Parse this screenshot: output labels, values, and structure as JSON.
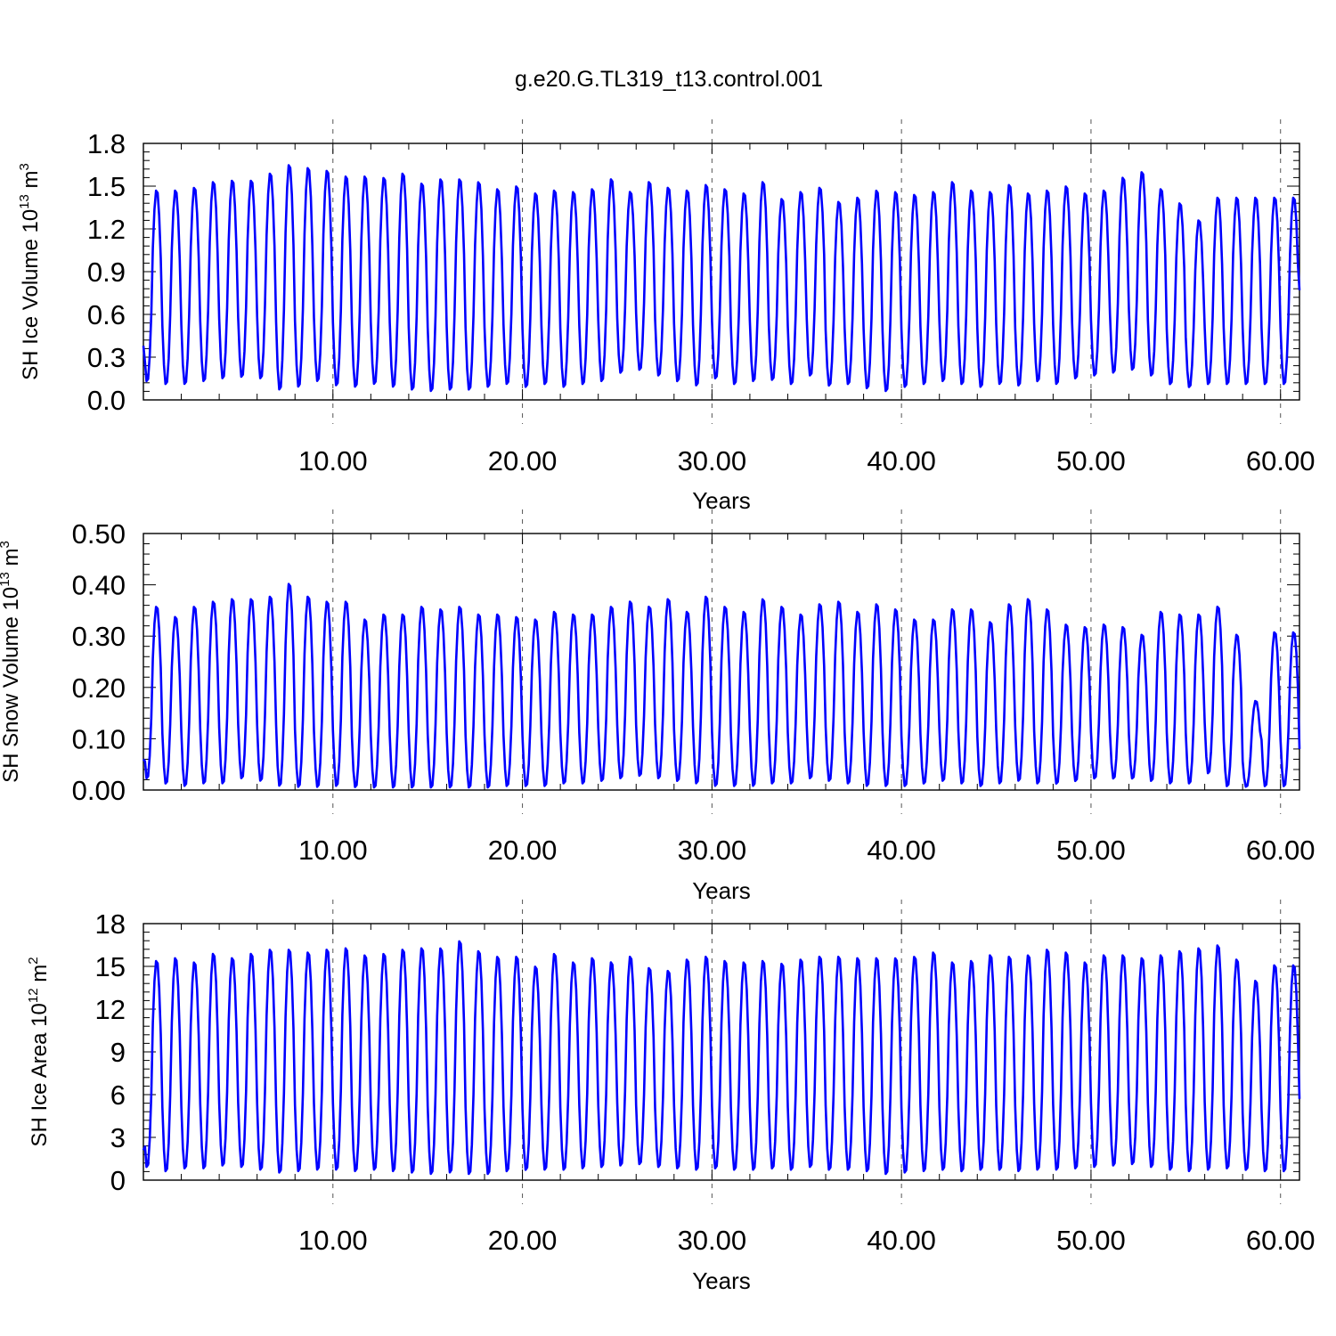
{
  "chart_data": {
    "title": "g.e20.G.TL319_t13.control.001",
    "panels": [
      {
        "type": "line",
        "ylabel_parts": [
          "SH Ice Volume 10",
          "13",
          " m",
          "3"
        ],
        "xlabel": "Years",
        "xlim": [
          0.0,
          61.0
        ],
        "ylim": [
          0.0,
          1.8
        ],
        "y_ticks": [
          0.0,
          0.3,
          0.6,
          0.9,
          1.2,
          1.5,
          1.8
        ],
        "y_tick_labels": [
          "0.0",
          "0.3",
          "0.6",
          "0.9",
          "1.2",
          "1.5",
          "1.8"
        ],
        "x_ticks": [
          10,
          20,
          30,
          40,
          50,
          60
        ],
        "x_tick_labels": [
          "10.00",
          "20.00",
          "30.00",
          "40.00",
          "50.00",
          "60.00"
        ],
        "series": [
          {
            "name": "SH Ice Volume",
            "color": "#0000ff",
            "annual_max": [
              1.48,
              1.48,
              1.5,
              1.54,
              1.55,
              1.55,
              1.6,
              1.66,
              1.64,
              1.62,
              1.58,
              1.58,
              1.57,
              1.6,
              1.53,
              1.56,
              1.56,
              1.54,
              1.49,
              1.51,
              1.46,
              1.48,
              1.47,
              1.49,
              1.56,
              1.47,
              1.54,
              1.5,
              1.48,
              1.52,
              1.49,
              1.46,
              1.54,
              1.42,
              1.47,
              1.5,
              1.4,
              1.43,
              1.48,
              1.47,
              1.45,
              1.47,
              1.54,
              1.48,
              1.47,
              1.52,
              1.46,
              1.48,
              1.51,
              1.46,
              1.48,
              1.57,
              1.61,
              1.49,
              1.39,
              1.27,
              1.43
            ],
            "annual_min": [
              0.12,
              0.1,
              0.1,
              0.12,
              0.14,
              0.15,
              0.14,
              0.06,
              0.08,
              0.12,
              0.09,
              0.08,
              0.1,
              0.08,
              0.06,
              0.05,
              0.06,
              0.06,
              0.08,
              0.1,
              0.08,
              0.1,
              0.08,
              0.1,
              0.12,
              0.18,
              0.2,
              0.16,
              0.12,
              0.09,
              0.14,
              0.1,
              0.12,
              0.13,
              0.1,
              0.16,
              0.09,
              0.1,
              0.07,
              0.05,
              0.08,
              0.1,
              0.12,
              0.1,
              0.08,
              0.1,
              0.09,
              0.12,
              0.1,
              0.14,
              0.16,
              0.18,
              0.2,
              0.16,
              0.1,
              0.08,
              0.1
            ],
            "start_value": 0.38,
            "end_value": 0.77
          }
        ]
      },
      {
        "type": "line",
        "ylabel_parts": [
          "SH Snow Volume 10",
          "13",
          " m",
          "3"
        ],
        "xlabel": "Years",
        "xlim": [
          0.0,
          61.0
        ],
        "ylim": [
          0.0,
          0.5
        ],
        "y_ticks": [
          0.0,
          0.1,
          0.2,
          0.3,
          0.4,
          0.5
        ],
        "y_tick_labels": [
          "0.00",
          "0.10",
          "0.20",
          "0.30",
          "0.40",
          "0.50"
        ],
        "x_ticks": [
          10,
          20,
          30,
          40,
          50,
          60
        ],
        "x_tick_labels": [
          "10.00",
          "20.00",
          "30.00",
          "40.00",
          "50.00",
          "60.00"
        ],
        "series": [
          {
            "name": "SH Snow Volume",
            "color": "#0000ff",
            "annual_max": [
              0.36,
              0.34,
              0.36,
              0.37,
              0.375,
              0.375,
              0.38,
              0.405,
              0.38,
              0.37,
              0.37,
              0.335,
              0.345,
              0.345,
              0.36,
              0.355,
              0.36,
              0.345,
              0.345,
              0.34,
              0.335,
              0.35,
              0.345,
              0.345,
              0.36,
              0.37,
              0.36,
              0.375,
              0.35,
              0.38,
              0.36,
              0.35,
              0.375,
              0.36,
              0.345,
              0.365,
              0.37,
              0.35,
              0.365,
              0.355,
              0.335,
              0.335,
              0.355,
              0.355,
              0.33,
              0.365,
              0.375,
              0.355,
              0.325,
              0.32,
              0.325,
              0.32,
              0.305,
              0.35,
              0.345,
              0.345,
              0.36,
              0.305,
              0.175,
              0.31
            ],
            "annual_min": [
              0.02,
              0.01,
              0.005,
              0.01,
              0.01,
              0.02,
              0.015,
              0.005,
              0.003,
              0.003,
              0.005,
              0.003,
              0.002,
              0.002,
              0.002,
              0.002,
              0.002,
              0.002,
              0.002,
              0.005,
              0.005,
              0.005,
              0.01,
              0.01,
              0.015,
              0.02,
              0.025,
              0.02,
              0.015,
              0.01,
              0.005,
              0.005,
              0.005,
              0.01,
              0.01,
              0.02,
              0.015,
              0.01,
              0.005,
              0.005,
              0.005,
              0.01,
              0.015,
              0.01,
              0.005,
              0.01,
              0.015,
              0.01,
              0.01,
              0.015,
              0.02,
              0.02,
              0.02,
              0.015,
              0.01,
              0.01,
              0.03,
              0.005,
              0.005,
              0.005
            ],
            "start_value": 0.06,
            "end_value": 0.08
          }
        ]
      },
      {
        "type": "line",
        "ylabel_parts": [
          "SH Ice Area 10",
          "12",
          " m",
          "2"
        ],
        "xlabel": "Years",
        "xlim": [
          0.0,
          61.0
        ],
        "ylim": [
          0,
          18
        ],
        "y_ticks": [
          0,
          3,
          6,
          9,
          12,
          15,
          18
        ],
        "y_tick_labels": [
          "0",
          "3",
          "6",
          "9",
          "12",
          "15",
          "18"
        ],
        "x_ticks": [
          10,
          20,
          30,
          40,
          50,
          60
        ],
        "x_tick_labels": [
          "10.00",
          "20.00",
          "30.00",
          "40.00",
          "50.00",
          "60.00"
        ],
        "series": [
          {
            "name": "SH Ice Area",
            "color": "#0000ff",
            "annual_max": [
              15.5,
              15.7,
              15.4,
              16.0,
              15.7,
              16.0,
              16.3,
              16.3,
              16.1,
              16.3,
              16.4,
              15.9,
              16.0,
              16.3,
              16.4,
              16.4,
              16.9,
              16.2,
              15.8,
              15.8,
              15.1,
              16.0,
              15.4,
              15.7,
              15.4,
              15.8,
              15.0,
              14.8,
              15.6,
              15.8,
              15.5,
              15.4,
              15.5,
              15.3,
              15.6,
              15.8,
              15.8,
              15.7,
              15.7,
              15.7,
              15.8,
              16.1,
              15.4,
              15.5,
              15.9,
              15.8,
              15.9,
              16.3,
              16.1,
              15.4,
              15.9,
              15.9,
              15.7,
              15.9,
              16.2,
              16.4,
              16.6,
              15.6,
              14.1,
              15.2
            ],
            "annual_min": [
              0.8,
              0.5,
              0.7,
              0.7,
              0.9,
              0.8,
              0.6,
              0.4,
              0.5,
              0.6,
              0.6,
              0.5,
              0.6,
              0.5,
              0.4,
              0.3,
              0.4,
              0.3,
              0.3,
              0.5,
              0.6,
              0.6,
              0.6,
              0.7,
              0.8,
              0.9,
              1.0,
              0.8,
              0.7,
              0.6,
              0.7,
              0.6,
              0.6,
              0.7,
              0.6,
              0.8,
              0.6,
              0.6,
              0.5,
              0.3,
              0.4,
              0.5,
              0.6,
              0.5,
              0.6,
              0.6,
              0.5,
              0.6,
              0.6,
              0.7,
              0.8,
              0.9,
              1.0,
              0.8,
              0.6,
              0.5,
              0.6,
              0.7,
              0.6,
              0.5
            ],
            "start_value": 2.1,
            "end_value": 5.7
          }
        ]
      }
    ]
  }
}
